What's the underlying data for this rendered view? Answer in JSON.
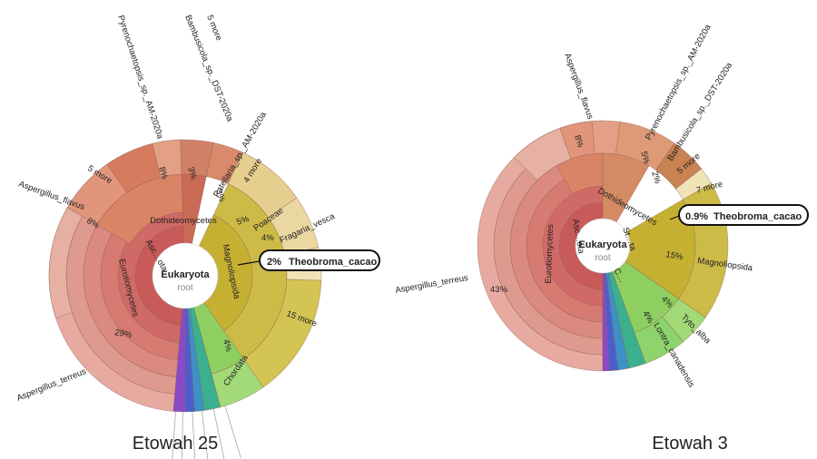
{
  "charts": [
    {
      "caption": "Etowah 25",
      "center_label": "Eukaryota",
      "root_label": "root",
      "highlight": {
        "percent": "2%",
        "taxon": "Theobroma_cacao"
      },
      "ring1_labels": [
        "Euro…",
        "Magnoliopsida"
      ],
      "labels": [
        "Pyrenochaetopsis_sp._AM-2020a",
        "Bambusicola_sp._DST-2020a",
        "5 more",
        "Patellaria_sp._AM-2020a",
        "4 more",
        "Poaceae",
        "Fragaria_vesca",
        "5 more",
        "Aspergillus_flavus",
        "Dothideomycetes",
        "Eurotiomycetes",
        "Asc…ota",
        "Magnoliopsida",
        "15 more",
        "Chordata",
        "Aspergillus_terreus"
      ],
      "percents": [
        "8%",
        "3%",
        "3%",
        "5%",
        "4%",
        "8%",
        "4%",
        "29%"
      ]
    },
    {
      "caption": "Etowah 3",
      "center_label": "Eukaryota",
      "root_label": "root",
      "highlight": {
        "percent": "0.9%",
        "taxon": "Theobroma_cacao"
      },
      "labels": [
        "Aspergillus_flavus",
        "Pyrenochaetopsis_sp._AM-2020a",
        "Bambusicola_sp._DST-2020a",
        "5 more",
        "7 more",
        "Dothideomycetes",
        "Eurotiomycetes",
        "Asc…ota",
        "St…ta",
        "C…",
        "Magnoliopsida",
        "Tyto_alba",
        "Lontra_canadensis",
        "Aspergillus_terreus"
      ],
      "percents": [
        "8%",
        "5%",
        "2%",
        "15%",
        "4%",
        "4%",
        "43%"
      ]
    }
  ],
  "chart_data": [
    {
      "type": "sunburst",
      "title": "Etowah 25",
      "root": "Eukaryota",
      "segments": [
        {
          "name": "Aspergillus_terreus",
          "percent": 29
        },
        {
          "name": "Aspergillus_flavus",
          "percent": 8
        },
        {
          "name": "Pyrenochaetopsis_sp._AM-2020a",
          "percent": 8
        },
        {
          "name": "Bambusicola_sp._DST-2020a",
          "percent": 3
        },
        {
          "name": "Patellaria_sp._AM-2020a",
          "percent": 3
        },
        {
          "name": "Poaceae",
          "percent": 5
        },
        {
          "name": "Fragaria_vesca",
          "percent": 4
        },
        {
          "name": "Theobroma_cacao",
          "percent": 2
        },
        {
          "name": "Chordata",
          "percent": 4
        }
      ]
    },
    {
      "type": "sunburst",
      "title": "Etowah 3",
      "root": "Eukaryota",
      "segments": [
        {
          "name": "Aspergillus_terreus",
          "percent": 43
        },
        {
          "name": "Aspergillus_flavus",
          "percent": 8
        },
        {
          "name": "Pyrenochaetopsis_sp._AM-2020a",
          "percent": 5
        },
        {
          "name": "Bambusicola_sp._DST-2020a",
          "percent": 2
        },
        {
          "name": "Theobroma_cacao",
          "percent": 0.9
        },
        {
          "name": "Magnoliopsida",
          "percent": 15
        },
        {
          "name": "Tyto_alba",
          "percent": 4
        },
        {
          "name": "Lontra_canadensis",
          "percent": 4
        }
      ]
    }
  ]
}
